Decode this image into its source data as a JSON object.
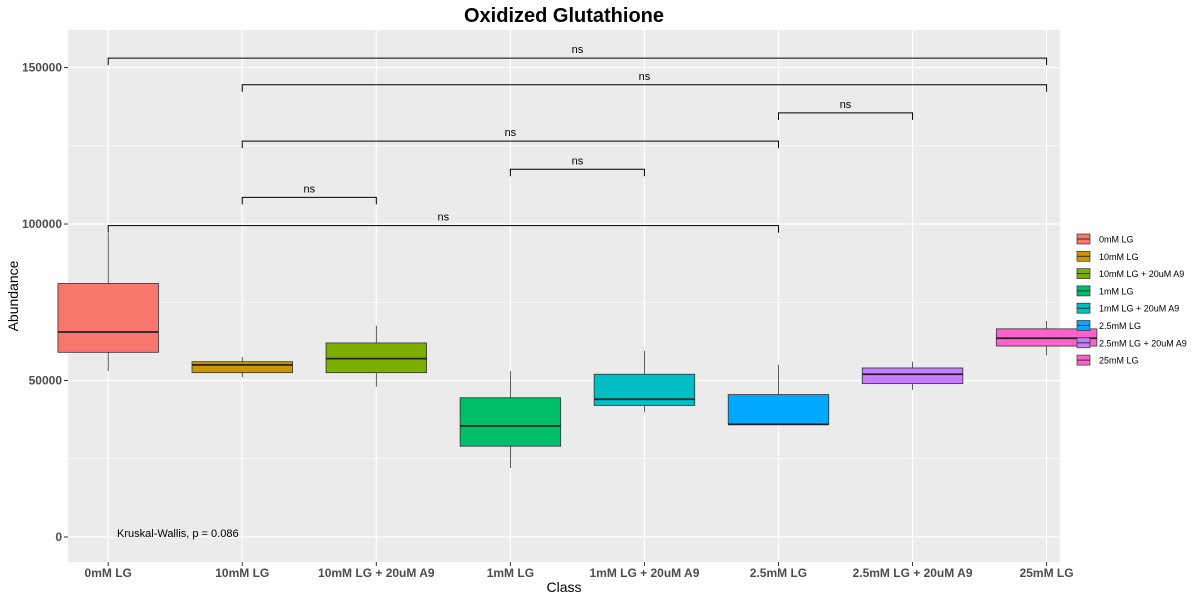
{
  "chart_data": {
    "type": "box",
    "title": "Oxidized Glutathione",
    "xlabel": "Class",
    "ylabel": "Abundance",
    "ylim": [
      -8000,
      162000
    ],
    "yticks": [
      0,
      50000,
      100000,
      150000
    ],
    "ytick_labels": [
      "0",
      "50000",
      "100000",
      "150000"
    ],
    "categories": [
      "0mM LG",
      "10mM LG",
      "10mM LG + 20uM A9",
      "1mM LG",
      "1mM LG + 20uM A9",
      "2.5mM LG",
      "2.5mM LG + 20uM A9",
      "25mM LG"
    ],
    "series": [
      {
        "category": "0mM LG",
        "color": "#F8766D",
        "min": 53000,
        "q1": 59000,
        "median": 65500,
        "q3": 81000,
        "max": 97000
      },
      {
        "category": "10mM LG",
        "color": "#CD9600",
        "min": 51000,
        "q1": 52500,
        "median": 55000,
        "q3": 56000,
        "max": 57500
      },
      {
        "category": "10mM LG + 20uM A9",
        "color": "#7CAE00",
        "min": 48000,
        "q1": 52500,
        "median": 57000,
        "q3": 62000,
        "max": 67500
      },
      {
        "category": "1mM LG",
        "color": "#00BE67",
        "min": 22000,
        "q1": 29000,
        "median": 35500,
        "q3": 44500,
        "max": 53000
      },
      {
        "category": "1mM LG + 20uM A9",
        "color": "#00BFC4",
        "min": 40000,
        "q1": 42000,
        "median": 44000,
        "q3": 52000,
        "max": 59500
      },
      {
        "category": "2.5mM LG",
        "color": "#00A9FF",
        "min": 36000,
        "q1": 36000,
        "median": 36000,
        "q3": 45500,
        "max": 55000
      },
      {
        "category": "2.5mM LG + 20uM A9",
        "color": "#C77CFF",
        "min": 47000,
        "q1": 49000,
        "median": 52000,
        "q3": 54000,
        "max": 56000
      },
      {
        "category": "25mM LG",
        "color": "#FF61CC",
        "min": 58000,
        "q1": 61000,
        "median": 63500,
        "q3": 66500,
        "max": 69000
      }
    ],
    "comparisons": [
      {
        "from": "0mM LG",
        "to": "25mM LG",
        "y": 153000,
        "label": "ns"
      },
      {
        "from": "10mM LG",
        "to": "25mM LG",
        "y": 144500,
        "label": "ns"
      },
      {
        "from": "2.5mM LG",
        "to": "2.5mM LG + 20uM A9",
        "y": 135500,
        "label": "ns"
      },
      {
        "from": "10mM LG",
        "to": "2.5mM LG",
        "y": 126500,
        "label": "ns"
      },
      {
        "from": "1mM LG",
        "to": "1mM LG + 20uM A9",
        "y": 117500,
        "label": "ns"
      },
      {
        "from": "10mM LG",
        "to": "10mM LG + 20uM A9",
        "y": 108500,
        "label": "ns"
      },
      {
        "from": "0mM LG",
        "to": "2.5mM LG",
        "y": 99500,
        "label": "ns"
      }
    ],
    "annotation": "Kruskal-Wallis, p = 0.086",
    "legend_position": "right",
    "grid": true
  }
}
